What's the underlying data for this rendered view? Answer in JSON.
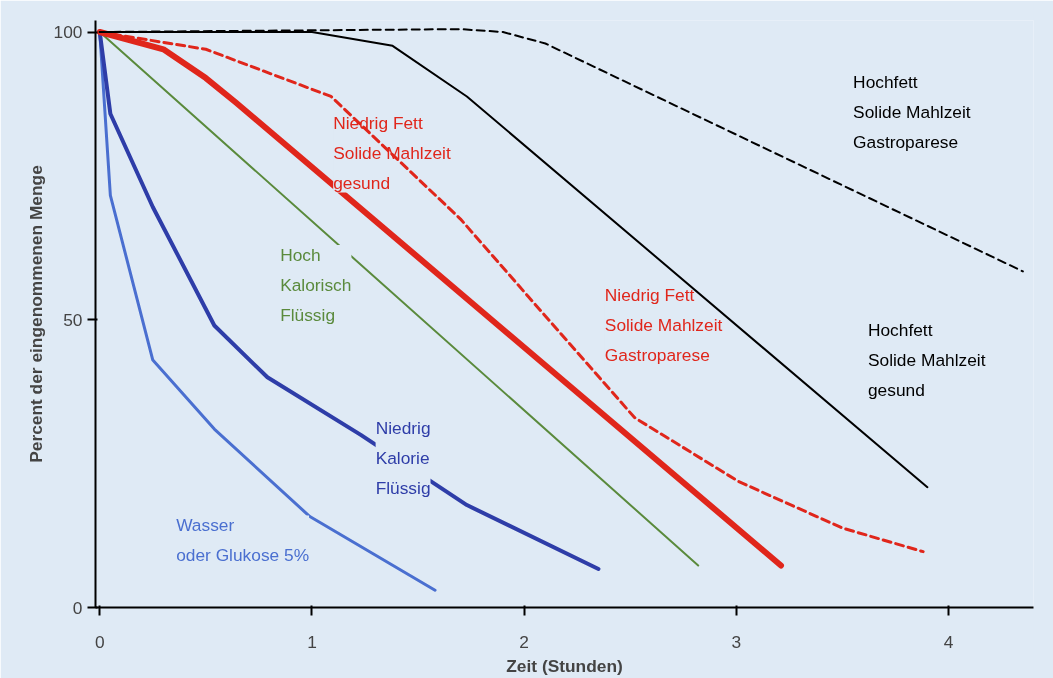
{
  "chart_data": {
    "type": "line",
    "xlabel": "Zeit (Stunden)",
    "ylabel": "Percent der eingenommenen Menge",
    "xlim": [
      -0.02,
      4.4
    ],
    "ylim": [
      0,
      102
    ],
    "xticks": [
      0,
      1,
      2,
      3,
      4
    ],
    "yticks": [
      0,
      50,
      100
    ],
    "grid": false,
    "legend": false,
    "marker": "none",
    "series": [
      {
        "name": "Wasser\noder Glukose 5%",
        "color": "#4a6fd0",
        "line_style": "solid",
        "x": [
          0,
          0.05,
          0.25,
          0.54,
          0.99,
          1.58
        ],
        "values": [
          100,
          71.6,
          43,
          31,
          15.8,
          3
        ]
      },
      {
        "name": "Niedrig\nKalorie\nFlüssig",
        "color": "#2e3da8",
        "line_style": "solid",
        "x": [
          0,
          0.05,
          0.25,
          0.54,
          0.79,
          1.23,
          1.73,
          2.35
        ],
        "values": [
          100,
          85.8,
          69.6,
          49,
          40,
          30,
          17.8,
          6.7
        ]
      },
      {
        "name": "Hoch\nKalorisch\nFlüssig",
        "color": "#5a8a3c",
        "line_style": "solid",
        "x": [
          0,
          2.82
        ],
        "values": [
          100,
          7.3
        ]
      },
      {
        "name": "Niedrig Fett\nSolide Mahlzeit\ngesund",
        "color": "#e0261b",
        "line_style": "solid",
        "x": [
          0,
          0.3,
          0.5,
          0.64,
          3.21
        ],
        "values": [
          100,
          97,
          92,
          87.8,
          7.3
        ]
      },
      {
        "name": "Niedrig Fett\nSolide Mahlzeit\nGastroparese",
        "color": "#e0261b",
        "line_style": "dashed",
        "x": [
          0,
          0.5,
          1.09,
          1.7,
          2.02,
          2.52,
          3.01,
          3.5,
          3.88
        ],
        "values": [
          100,
          97,
          88.8,
          67.5,
          54,
          33,
          21.9,
          13.8,
          9.7
        ]
      },
      {
        "name": "Hochfett\nSolide Mahlzeit\ngesund",
        "color": "#000000",
        "line_style": "solid",
        "x": [
          0,
          0.83,
          1.0,
          1.38,
          1.73,
          3.9
        ],
        "values": [
          100,
          100,
          100,
          97.6,
          88.8,
          20.9
        ]
      },
      {
        "name": "Hochfett\nSolide Mahlzeit\nGastroparese",
        "color": "#000000",
        "line_style": "dashed",
        "x": [
          0,
          1.7,
          1.9,
          2.1,
          4.35
        ],
        "values": [
          100,
          100.5,
          100,
          98,
          58.4
        ]
      }
    ]
  }
}
